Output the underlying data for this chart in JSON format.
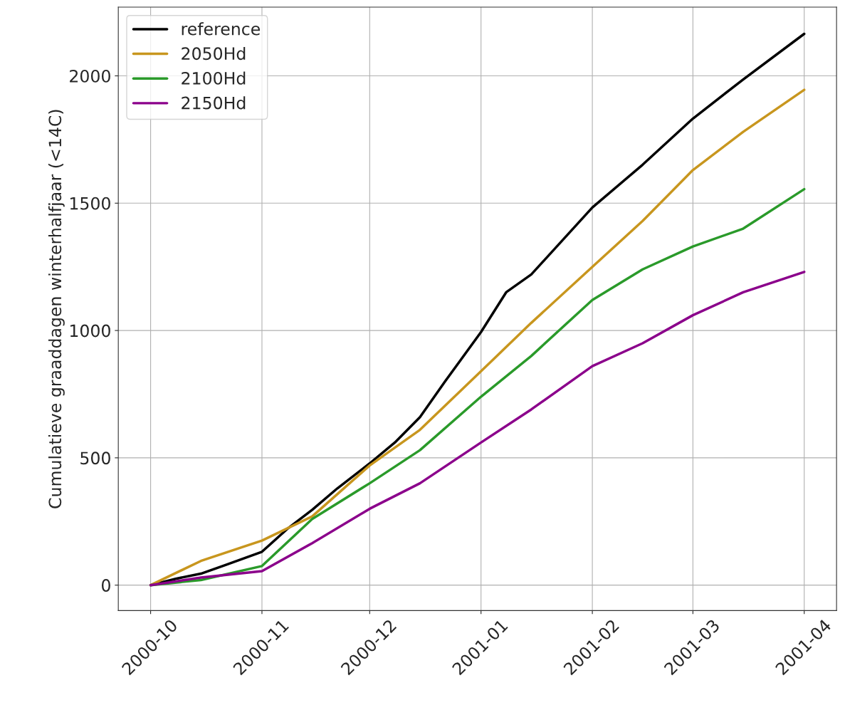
{
  "chart_data": {
    "type": "line",
    "ylabel": "Cumulatieve graaddagen winterhalfjaar (<14C)",
    "xlim": [
      "2000-09-22",
      "2001-04-10"
    ],
    "xticks": [
      "2000-10",
      "2000-11",
      "2000-12",
      "2001-01",
      "2001-02",
      "2001-03",
      "2001-04"
    ],
    "ylim": [
      -100,
      2270
    ],
    "yticks": [
      0,
      500,
      1000,
      1500,
      2000
    ],
    "grid": true,
    "legend": "top left",
    "series": [
      {
        "name": "reference",
        "color": "#000000",
        "x": [
          "2000-10-01",
          "2000-10-08",
          "2000-10-15",
          "2000-10-22",
          "2000-11-01",
          "2000-11-08",
          "2000-11-15",
          "2000-11-22",
          "2000-12-01",
          "2000-12-08",
          "2000-12-15",
          "2000-12-22",
          "2001-01-01",
          "2001-01-08",
          "2001-01-15",
          "2001-02-01",
          "2001-02-15",
          "2001-03-01",
          "2001-03-15",
          "2001-04-01"
        ],
        "values": [
          0,
          25,
          45,
          80,
          131,
          220,
          296,
          380,
          478,
          560,
          660,
          800,
          994,
          1150,
          1220,
          1483,
          1651,
          1832,
          1986,
          2165
        ]
      },
      {
        "name": "2050Hd",
        "color": "#c8961e",
        "x": [
          "2000-10-01",
          "2000-10-15",
          "2000-11-01",
          "2000-11-15",
          "2000-12-01",
          "2000-12-15",
          "2001-01-01",
          "2001-01-15",
          "2001-02-01",
          "2001-02-15",
          "2001-03-01",
          "2001-03-15",
          "2001-04-01"
        ],
        "values": [
          0,
          95,
          175,
          270,
          470,
          610,
          840,
          1030,
          1250,
          1430,
          1630,
          1780,
          1945
        ]
      },
      {
        "name": "2100Hd",
        "color": "#2a9a2a",
        "x": [
          "2000-10-01",
          "2000-10-15",
          "2000-11-01",
          "2000-11-15",
          "2000-12-01",
          "2000-12-15",
          "2001-01-01",
          "2001-01-15",
          "2001-02-01",
          "2001-02-15",
          "2001-03-01",
          "2001-03-15",
          "2001-04-01"
        ],
        "values": [
          0,
          20,
          75,
          260,
          400,
          530,
          740,
          900,
          1120,
          1240,
          1330,
          1400,
          1555
        ]
      },
      {
        "name": "2150Hd",
        "color": "#8b008b",
        "x": [
          "2000-10-01",
          "2000-10-15",
          "2000-11-01",
          "2000-11-15",
          "2000-12-01",
          "2000-12-15",
          "2001-01-01",
          "2001-01-15",
          "2001-02-01",
          "2001-02-15",
          "2001-03-01",
          "2001-03-15",
          "2001-04-01"
        ],
        "values": [
          0,
          30,
          55,
          165,
          300,
          400,
          560,
          690,
          860,
          950,
          1060,
          1150,
          1230
        ]
      }
    ]
  }
}
